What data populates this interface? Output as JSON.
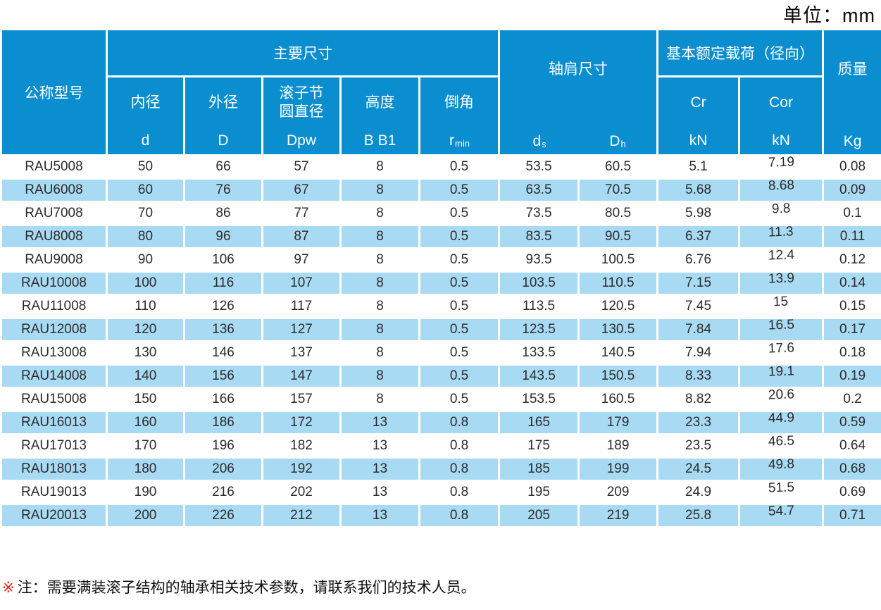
{
  "unit_label": "单位：mm",
  "colors": {
    "header_blue": "#0a8ed0",
    "stripe_blue": "#a9daf3",
    "text_dark": "#2b2b2b",
    "note_mark_red": "#d9251c",
    "header_text": "#ffffff"
  },
  "table": {
    "model_col": {
      "title": "公称型号"
    },
    "main_group": {
      "title": "主要尺寸",
      "cols": [
        {
          "name": "内径",
          "symbol": "d"
        },
        {
          "name": "外径",
          "symbol": "D"
        },
        {
          "name_line1": "滚子节",
          "name_line2": "圆直径",
          "symbol": "Dpw"
        },
        {
          "name": "高度",
          "symbol": "B B1"
        },
        {
          "name": "倒角",
          "symbol": "r",
          "symbol_sub": "min"
        }
      ]
    },
    "shoulder_group": {
      "title": "轴肩尺寸",
      "cols": [
        {
          "symbol": "d",
          "symbol_sub": "s"
        },
        {
          "symbol": "D",
          "symbol_sub": "h"
        }
      ]
    },
    "load_group": {
      "title": "基本额定载荷（径向）",
      "cols": [
        {
          "symbol": "Cr",
          "unit": "kN"
        },
        {
          "symbol": "Cor",
          "unit": "kN"
        }
      ]
    },
    "mass_col": {
      "title": "质量",
      "unit": "Kg"
    },
    "rows": [
      [
        "RAU5008",
        "50",
        "66",
        "57",
        "8",
        "0.5",
        "53.5",
        "60.5",
        "5.1",
        "7.19",
        "0.08"
      ],
      [
        "RAU6008",
        "60",
        "76",
        "67",
        "8",
        "0.5",
        "63.5",
        "70.5",
        "5.68",
        "8.68",
        "0.09"
      ],
      [
        "RAU7008",
        "70",
        "86",
        "77",
        "8",
        "0.5",
        "73.5",
        "80.5",
        "5.98",
        "9.8",
        "0.1"
      ],
      [
        "RAU8008",
        "80",
        "96",
        "87",
        "8",
        "0.5",
        "83.5",
        "90.5",
        "6.37",
        "11.3",
        "0.11"
      ],
      [
        "RAU9008",
        "90",
        "106",
        "97",
        "8",
        "0.5",
        "93.5",
        "100.5",
        "6.76",
        "12.4",
        "0.12"
      ],
      [
        "RAU10008",
        "100",
        "116",
        "107",
        "8",
        "0.5",
        "103.5",
        "110.5",
        "7.15",
        "13.9",
        "0.14"
      ],
      [
        "RAU11008",
        "110",
        "126",
        "117",
        "8",
        "0.5",
        "113.5",
        "120.5",
        "7.45",
        "15",
        "0.15"
      ],
      [
        "RAU12008",
        "120",
        "136",
        "127",
        "8",
        "0.5",
        "123.5",
        "130.5",
        "7.84",
        "16.5",
        "0.17"
      ],
      [
        "RAU13008",
        "130",
        "146",
        "137",
        "8",
        "0.5",
        "133.5",
        "140.5",
        "7.94",
        "17.6",
        "0.18"
      ],
      [
        "RAU14008",
        "140",
        "156",
        "147",
        "8",
        "0.5",
        "143.5",
        "150.5",
        "8.33",
        "19.1",
        "0.19"
      ],
      [
        "RAU15008",
        "150",
        "166",
        "157",
        "8",
        "0.5",
        "153.5",
        "160.5",
        "8.82",
        "20.6",
        "0.2"
      ],
      [
        "RAU16013",
        "160",
        "186",
        "172",
        "13",
        "0.8",
        "165",
        "179",
        "23.3",
        "44.9",
        "0.59"
      ],
      [
        "RAU17013",
        "170",
        "196",
        "182",
        "13",
        "0.8",
        "175",
        "189",
        "23.5",
        "46.5",
        "0.64"
      ],
      [
        "RAU18013",
        "180",
        "206",
        "192",
        "13",
        "0.8",
        "185",
        "199",
        "24.5",
        "49.8",
        "0.68"
      ],
      [
        "RAU19013",
        "190",
        "216",
        "202",
        "13",
        "0.8",
        "195",
        "209",
        "24.9",
        "51.5",
        "0.69"
      ],
      [
        "RAU20013",
        "200",
        "226",
        "212",
        "13",
        "0.8",
        "205",
        "219",
        "25.8",
        "54.7",
        "0.71"
      ]
    ]
  },
  "note": {
    "mark": "※",
    "text": "注：需要满装滚子结构的轴承相关技术参数，请联系我们的技术人员。"
  }
}
